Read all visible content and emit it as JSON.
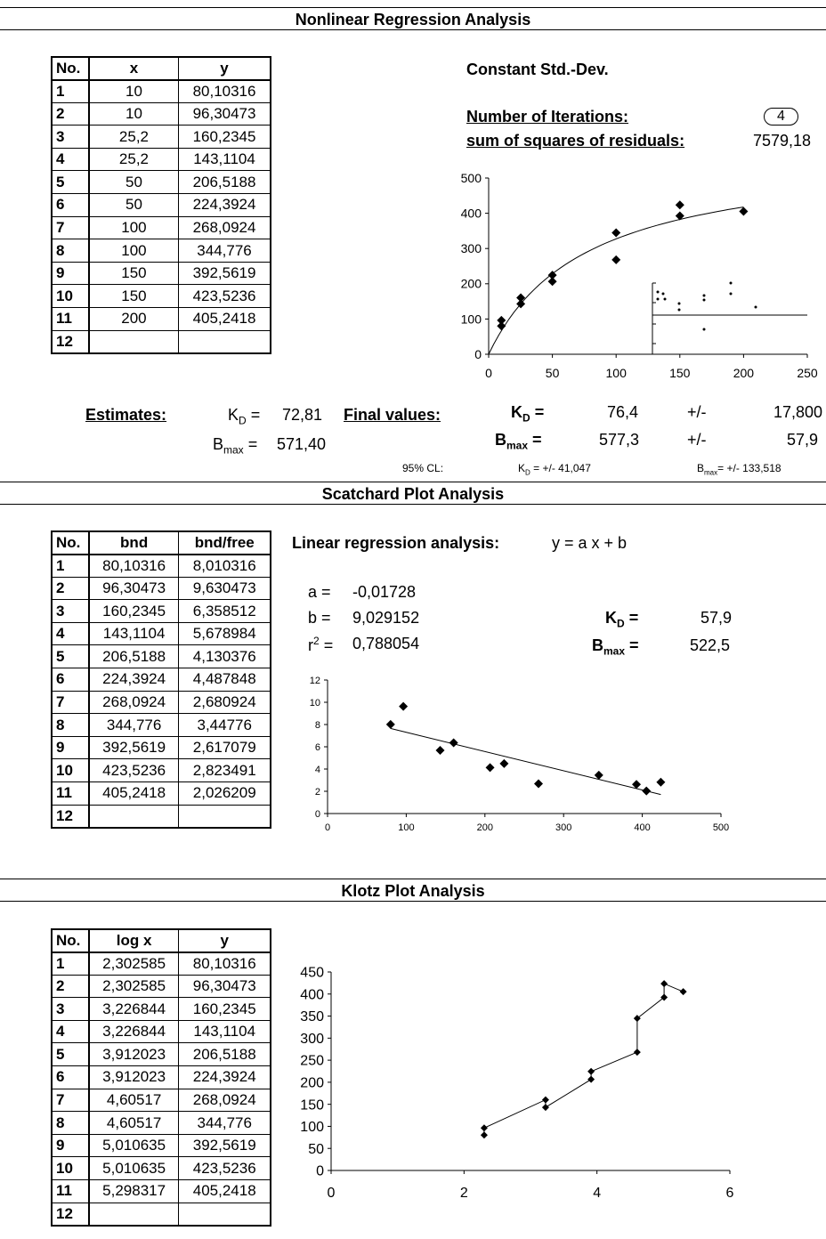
{
  "sections": {
    "nonlinear": "Nonlinear Regression Analysis",
    "scatchard": "Scatchard Plot Analysis",
    "klotz": "Klotz Plot Analysis"
  },
  "nonlinear": {
    "headers": [
      "No.",
      "x",
      "y"
    ],
    "rows": [
      [
        "1",
        "10",
        "80,10316"
      ],
      [
        "2",
        "10",
        "96,30473"
      ],
      [
        "3",
        "25,2",
        "160,2345"
      ],
      [
        "4",
        "25,2",
        "143,1104"
      ],
      [
        "5",
        "50",
        "206,5188"
      ],
      [
        "6",
        "50",
        "224,3924"
      ],
      [
        "7",
        "100",
        "268,0924"
      ],
      [
        "8",
        "100",
        "344,776"
      ],
      [
        "9",
        "150",
        "392,5619"
      ],
      [
        "10",
        "150",
        "423,5236"
      ],
      [
        "11",
        "200",
        "405,2418"
      ],
      [
        "12",
        "",
        ""
      ]
    ],
    "constant_std": "Constant Std.-Dev.",
    "iterations_label": "Number of Iterations:",
    "iterations_value": "4",
    "ssr_label": "sum of squares of residuals:",
    "ssr_value": "7579,18",
    "estimates_label": "Estimates:",
    "est_kd_label": "K",
    "est_kd_sub": "D",
    "est_kd_eq": " = ",
    "est_kd_value": "72,81",
    "est_bmax_label": "B",
    "est_bmax_sub": "max",
    "est_bmax_eq": " = ",
    "est_bmax_value": "571,40",
    "final_label": "Final values:",
    "final_kd_value": "76,4",
    "final_kd_pm": "+/-",
    "final_kd_err": "17,800",
    "final_bmax_value": "577,3",
    "final_bmax_pm": "+/-",
    "final_bmax_err": "57,9",
    "cl_label": "95% CL:",
    "cl_kd": "+/- 41,047",
    "cl_bmax": "+/- 133,518",
    "eq": "="
  },
  "scatchard": {
    "headers": [
      "No.",
      "bnd",
      "bnd/free"
    ],
    "rows": [
      [
        "1",
        "80,10316",
        "8,010316"
      ],
      [
        "2",
        "96,30473",
        "9,630473"
      ],
      [
        "3",
        "160,2345",
        "6,358512"
      ],
      [
        "4",
        "143,1104",
        "5,678984"
      ],
      [
        "5",
        "206,5188",
        "4,130376"
      ],
      [
        "6",
        "224,3924",
        "4,487848"
      ],
      [
        "7",
        "268,0924",
        "2,680924"
      ],
      [
        "8",
        "344,776",
        "3,44776"
      ],
      [
        "9",
        "392,5619",
        "2,617079"
      ],
      [
        "10",
        "423,5236",
        "2,823491"
      ],
      [
        "11",
        "405,2418",
        "2,026209"
      ],
      [
        "12",
        "",
        ""
      ]
    ],
    "linreg_label": "Linear regression analysis:",
    "linreg_eq": "y = a x + b",
    "a_label": "a =",
    "a_value": "-0,01728",
    "b_label": "b =",
    "b_value": "9,029152",
    "r2_label": "r",
    "r2_sup": "2",
    "r2_eq": " =",
    "r2_value": "0,788054",
    "kd_value": "57,9",
    "bmax_value": "522,5"
  },
  "klotz": {
    "headers": [
      "No.",
      "log x",
      "y"
    ],
    "rows": [
      [
        "1",
        "2,302585",
        "80,10316"
      ],
      [
        "2",
        "2,302585",
        "96,30473"
      ],
      [
        "3",
        "3,226844",
        "160,2345"
      ],
      [
        "4",
        "3,226844",
        "143,1104"
      ],
      [
        "5",
        "3,912023",
        "206,5188"
      ],
      [
        "6",
        "3,912023",
        "224,3924"
      ],
      [
        "7",
        "4,60517",
        "268,0924"
      ],
      [
        "8",
        "4,60517",
        "344,776"
      ],
      [
        "9",
        "5,010635",
        "392,5619"
      ],
      [
        "10",
        "5,010635",
        "423,5236"
      ],
      [
        "11",
        "5,298317",
        "405,2418"
      ],
      [
        "12",
        "",
        ""
      ]
    ]
  },
  "chart_data": [
    {
      "type": "scatter",
      "name_hint": "nonlinear-fit",
      "x": [
        10,
        10,
        25.2,
        25.2,
        50,
        50,
        100,
        100,
        150,
        150,
        200
      ],
      "y": [
        80.10316,
        96.30473,
        160.2345,
        143.1104,
        206.5188,
        224.3924,
        268.0924,
        344.776,
        392.5619,
        423.5236,
        405.2418
      ],
      "fit_curve": "y = 577.3 x / (76.4 + x)",
      "xlim": [
        0,
        250
      ],
      "ylim": [
        0,
        500
      ],
      "xticks": [
        "0",
        "50",
        "100",
        "150",
        "200",
        "250"
      ],
      "yticks": [
        "0",
        "100",
        "200",
        "300",
        "400",
        "500"
      ],
      "grid": false,
      "inset_residuals": true
    },
    {
      "type": "scatter",
      "name_hint": "scatchard",
      "x": [
        80.10316,
        96.30473,
        160.2345,
        143.1104,
        206.5188,
        224.3924,
        268.0924,
        344.776,
        392.5619,
        423.5236,
        405.2418
      ],
      "y": [
        8.010316,
        9.630473,
        6.358512,
        5.678984,
        4.130376,
        4.487848,
        2.680924,
        3.44776,
        2.617079,
        2.823491,
        2.026209
      ],
      "fit_line": {
        "a": -0.01728,
        "b": 9.029152
      },
      "xlim": [
        0,
        500
      ],
      "ylim": [
        0,
        12
      ],
      "xticks": [
        "0",
        "100",
        "200",
        "300",
        "400",
        "500"
      ],
      "yticks": [
        "0",
        "2",
        "4",
        "6",
        "8",
        "10",
        "12"
      ],
      "grid": false
    },
    {
      "type": "line",
      "name_hint": "klotz",
      "x": [
        2.302585,
        2.302585,
        3.226844,
        3.226844,
        3.912023,
        3.912023,
        4.60517,
        4.60517,
        5.010635,
        5.010635,
        5.298317
      ],
      "y": [
        80.10316,
        96.30473,
        160.2345,
        143.1104,
        206.5188,
        224.3924,
        268.0924,
        344.776,
        392.5619,
        423.5236,
        405.2418
      ],
      "xlim": [
        0,
        6
      ],
      "ylim": [
        0,
        450
      ],
      "xticks": [
        "0",
        "2",
        "4",
        "6"
      ],
      "yticks": [
        "0",
        "50",
        "100",
        "150",
        "200",
        "250",
        "300",
        "350",
        "400",
        "450"
      ],
      "grid": false
    }
  ]
}
